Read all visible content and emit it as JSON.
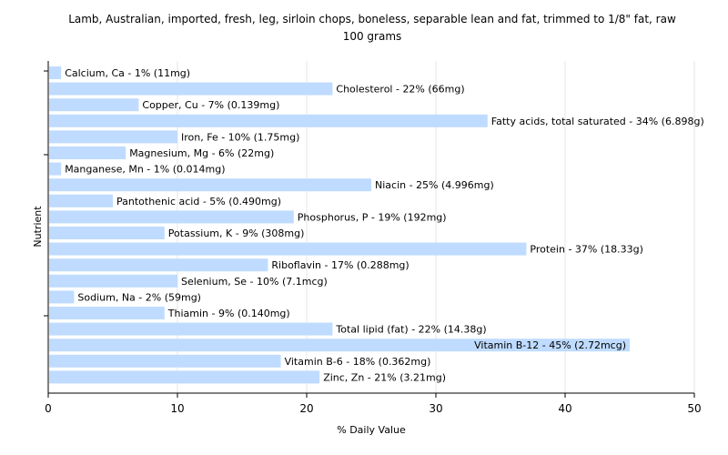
{
  "chart_data": {
    "type": "bar",
    "orientation": "horizontal",
    "title": "Lamb, Australian, imported, fresh, leg, sirloin chops, boneless, separable lean and fat, trimmed to 1/8\" fat, raw",
    "subtitle": "100 grams",
    "xlabel": "% Daily Value",
    "ylabel": "Nutrient",
    "xlim": [
      0,
      50
    ],
    "xticks": [
      0,
      10,
      20,
      30,
      40,
      50
    ],
    "grid": true,
    "bar_color": "#bfdbff",
    "categories": [
      "Calcium, Ca",
      "Cholesterol",
      "Copper, Cu",
      "Fatty acids, total saturated",
      "Iron, Fe",
      "Magnesium, Mg",
      "Manganese, Mn",
      "Niacin",
      "Pantothenic acid",
      "Phosphorus, P",
      "Potassium, K",
      "Protein",
      "Riboflavin",
      "Selenium, Se",
      "Sodium, Na",
      "Thiamin",
      "Total lipid (fat)",
      "Vitamin B-12",
      "Vitamin B-6",
      "Zinc, Zn"
    ],
    "values": [
      1,
      22,
      7,
      34,
      10,
      6,
      1,
      25,
      5,
      19,
      9,
      37,
      17,
      10,
      2,
      9,
      22,
      45,
      18,
      21
    ],
    "data_labels": [
      "Calcium, Ca - 1% (11mg)",
      "Cholesterol - 22% (66mg)",
      "Copper, Cu - 7% (0.139mg)",
      "Fatty acids, total saturated - 34% (6.898g)",
      "Iron, Fe - 10% (1.75mg)",
      "Magnesium, Mg - 6% (22mg)",
      "Manganese, Mn - 1% (0.014mg)",
      "Niacin - 25% (4.996mg)",
      "Pantothenic acid - 5% (0.490mg)",
      "Phosphorus, P - 19% (192mg)",
      "Potassium, K - 9% (308mg)",
      "Protein - 37% (18.33g)",
      "Riboflavin - 17% (0.288mg)",
      "Selenium, Se - 10% (7.1mcg)",
      "Sodium, Na - 2% (59mg)",
      "Thiamin - 9% (0.140mg)",
      "Total lipid (fat) - 22% (14.38g)",
      "Vitamin B-12 - 45% (2.72mcg)",
      "Vitamin B-6 - 18% (0.362mg)",
      "Zinc, Zn - 21% (3.21mg)"
    ]
  }
}
